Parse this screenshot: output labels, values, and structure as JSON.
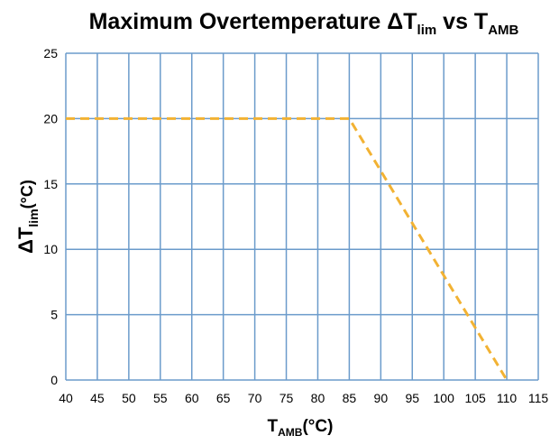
{
  "chart_data": {
    "type": "line",
    "title": {
      "prefix": "Maximum Overtemperature ΔT",
      "sub1": "lim",
      "middle": " vs T",
      "sub2": "AMB"
    },
    "xlabel": {
      "main": "T",
      "sub": "AMB",
      "unit": "(°C)"
    },
    "ylabel": {
      "main": "ΔT",
      "sub": "lim",
      "unit": "(°C)"
    },
    "xlim": [
      40,
      115
    ],
    "ylim": [
      0,
      25
    ],
    "x_ticks": [
      "40",
      "45",
      "50",
      "55",
      "60",
      "65",
      "70",
      "75",
      "80",
      "85",
      "90",
      "95",
      "100",
      "105",
      "110",
      "115"
    ],
    "y_ticks": [
      "0",
      "5",
      "10",
      "15",
      "20",
      "25"
    ],
    "grid": true,
    "colors": {
      "line": "#F2B233",
      "grid": "#6B9BCB"
    },
    "series": [
      {
        "x": [
          40,
          85,
          110
        ],
        "y": [
          20,
          20,
          0
        ],
        "style": "dashed"
      }
    ]
  }
}
